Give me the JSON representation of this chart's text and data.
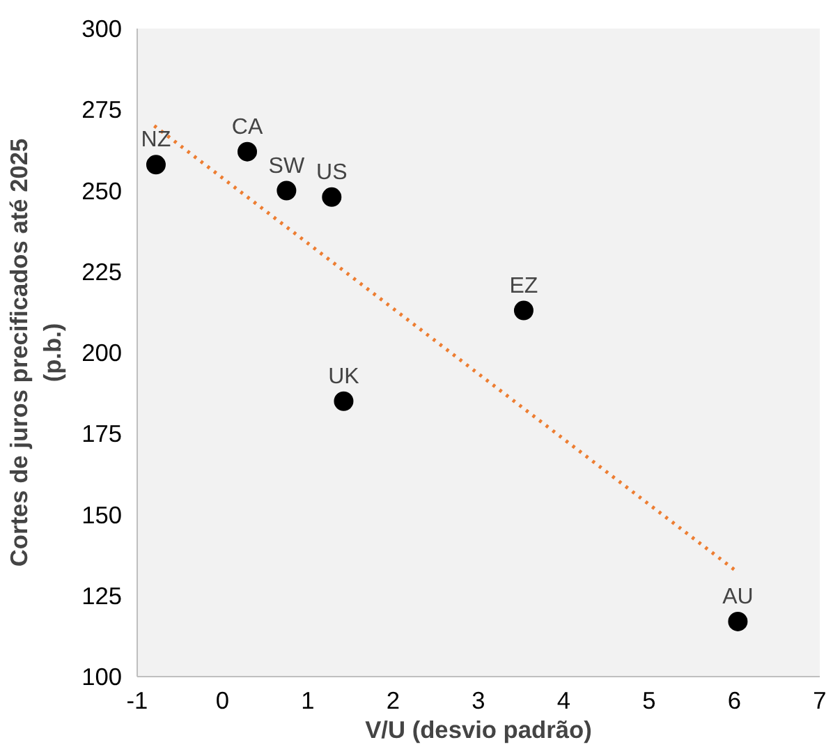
{
  "chart_data": {
    "type": "scatter",
    "xlabel": "V/U (desvio padrão)",
    "ylabel": "Cortes de juros precificados até 2025\n(p.b.)",
    "series": [
      {
        "color": "#000000",
        "marker": "circle",
        "x": [
          -0.78,
          0.29,
          0.75,
          1.28,
          1.42,
          3.53,
          6.04
        ],
        "values": [
          258,
          262,
          250,
          248,
          185,
          213,
          117
        ]
      },
      {
        "type": "line",
        "color": "#ed7d31",
        "line_style": "dotted",
        "marker": "none",
        "x": [
          -0.8,
          6.0
        ],
        "values": [
          270,
          133
        ]
      }
    ],
    "annotations": [
      {
        "text": "NZ",
        "x": -0.78,
        "y": 258
      },
      {
        "text": "CA",
        "x": 0.29,
        "y": 262
      },
      {
        "text": "SW",
        "x": 0.75,
        "y": 250
      },
      {
        "text": "US",
        "x": 1.28,
        "y": 248
      },
      {
        "text": "UK",
        "x": 1.42,
        "y": 185
      },
      {
        "text": "EZ",
        "x": 3.53,
        "y": 213
      },
      {
        "text": "AU",
        "x": 6.04,
        "y": 117
      }
    ],
    "xlim": [
      -1,
      7
    ],
    "xticks": [
      -1,
      0,
      1,
      2,
      3,
      4,
      5,
      6,
      7
    ],
    "ylim": [
      100,
      300
    ],
    "yticks": [
      100,
      125,
      150,
      175,
      200,
      225,
      250,
      275,
      300
    ],
    "grid": false
  }
}
